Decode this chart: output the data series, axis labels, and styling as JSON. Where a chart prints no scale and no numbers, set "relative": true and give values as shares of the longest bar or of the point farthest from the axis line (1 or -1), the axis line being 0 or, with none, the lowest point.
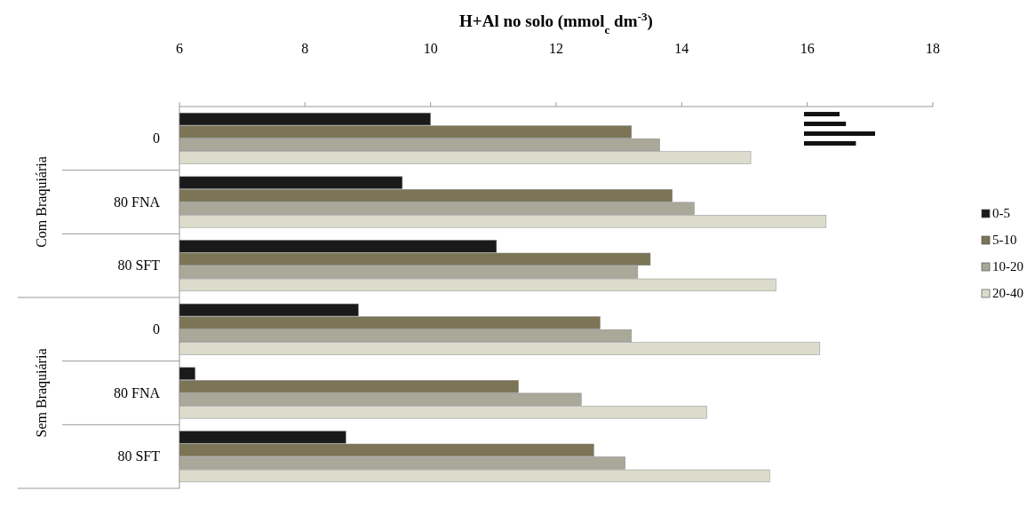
{
  "chart_data": [
    {
      "type": "bar",
      "orientation": "horizontal",
      "xlabel": "H+Al no solo (mmol$_{c}$ dm$^{-3}$)",
      "categories": [
        "0",
        "80 FNA",
        "80 SFT",
        "0",
        "80 FNA",
        "80 SFT"
      ],
      "series": [
        {
          "name": "0-5",
          "color": "#1a1a1a",
          "values": [
            10.0,
            9.55,
            11.05,
            8.85,
            6.25,
            8.65
          ]
        },
        {
          "name": "5-10",
          "color": "#7b7556",
          "values": [
            13.2,
            13.85,
            13.5,
            12.7,
            11.4,
            12.6
          ]
        },
        {
          "name": "10-20",
          "color": "#a9a899",
          "values": [
            13.65,
            14.2,
            13.3,
            13.2,
            12.4,
            13.1
          ]
        },
        {
          "name": "20-40",
          "color": "#dcdccc",
          "values": [
            15.1,
            16.3,
            15.5,
            16.2,
            14.4,
            15.4
          ]
        }
      ],
      "annotations": [
        "Com Braquiária",
        "Sem Braquiária"
      ],
      "xlim": [
        6,
        18
      ],
      "xticks": [
        6,
        8,
        10,
        12,
        14,
        16,
        18
      ],
      "legend": "right"
    },
    {
      "type": "bar",
      "orientation": "horizontal",
      "categories": [
        null,
        null,
        null,
        null
      ],
      "values": [
        0.5,
        0.59,
        1,
        0.73
      ],
      "relative": true,
      "color": "#111111"
    }
  ]
}
